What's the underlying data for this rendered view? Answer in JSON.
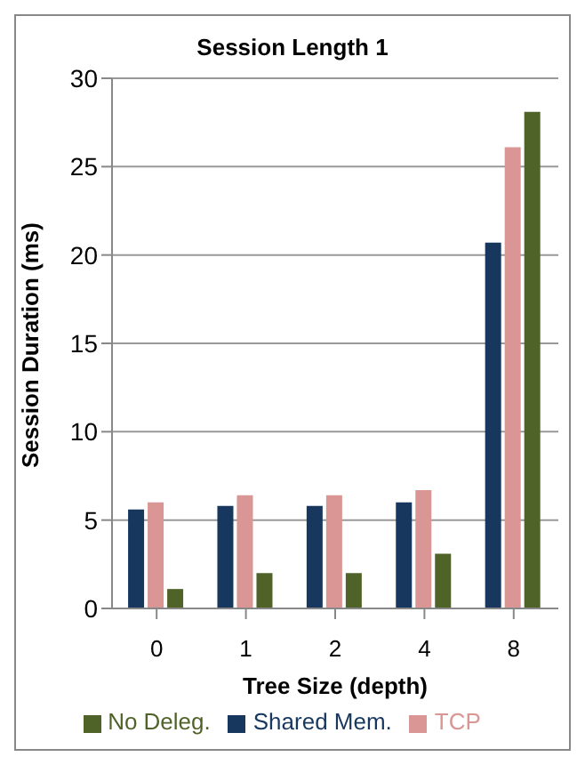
{
  "chart_data": {
    "type": "bar",
    "title": "Session Length 1",
    "xlabel": "Tree Size (depth)",
    "ylabel": "Session Duration (ms)",
    "categories": [
      "0",
      "1",
      "2",
      "4",
      "8"
    ],
    "series": [
      {
        "name": "Shared Mem.",
        "color": "#17375e",
        "values": [
          5.6,
          5.8,
          5.8,
          6.0,
          20.7
        ]
      },
      {
        "name": "TCP",
        "color": "#d99694",
        "values": [
          6.0,
          6.4,
          6.4,
          6.7,
          26.1
        ]
      },
      {
        "name": "No Deleg.",
        "color": "#4f6228",
        "values": [
          1.1,
          2.0,
          2.0,
          3.1,
          28.1
        ]
      }
    ],
    "ylim": [
      0,
      30
    ],
    "yticks": [
      0,
      5,
      10,
      15,
      20,
      25,
      30
    ],
    "grid": "y",
    "legend": "bottom"
  }
}
